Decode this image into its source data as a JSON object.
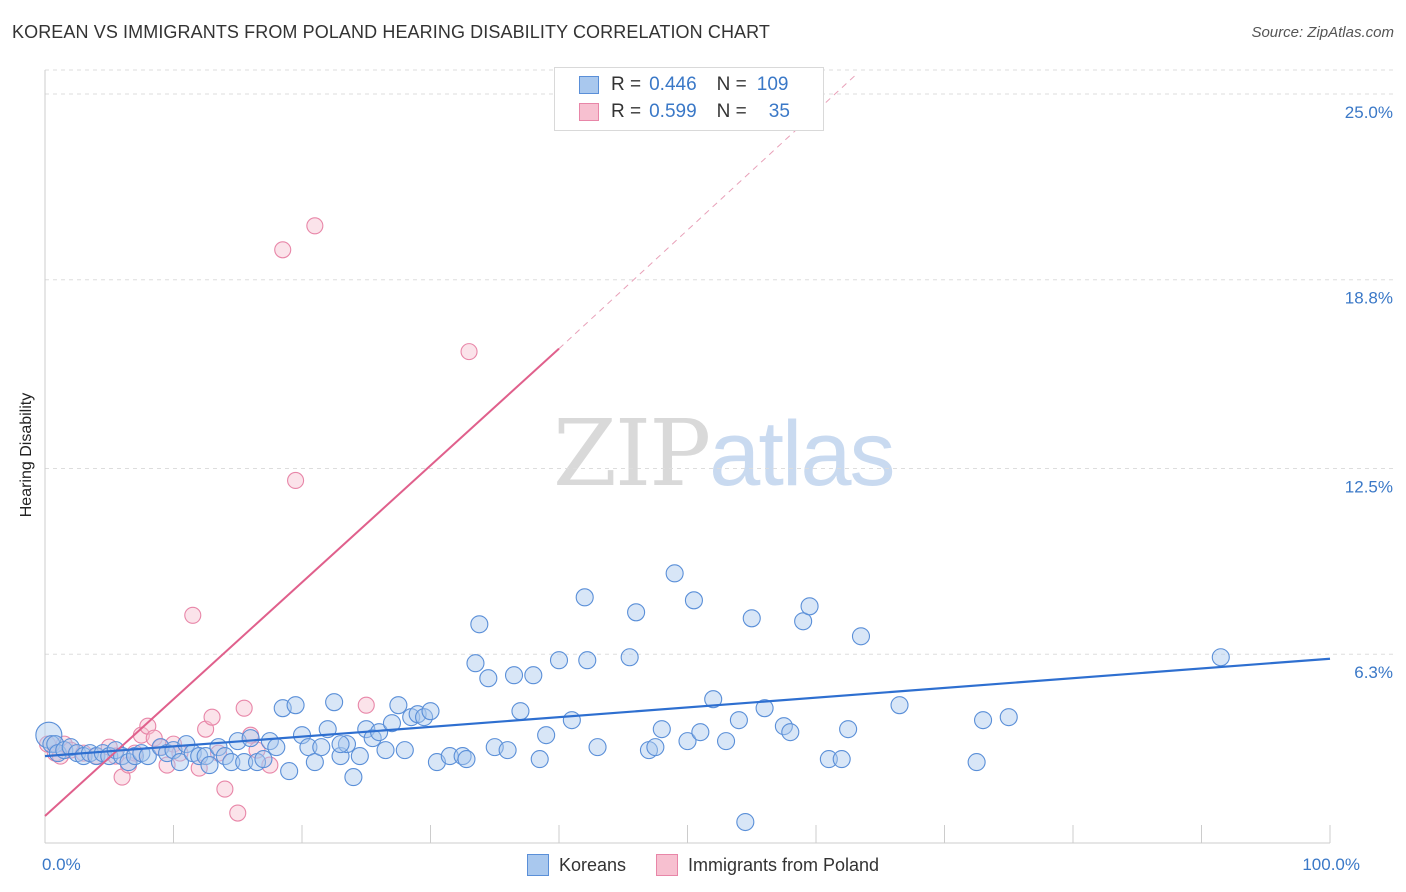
{
  "header": {
    "title": "KOREAN VS IMMIGRANTS FROM POLAND HEARING DISABILITY CORRELATION CHART",
    "source": "Source: ZipAtlas.com"
  },
  "watermark": {
    "part1": "ZIP",
    "part2": "atlas"
  },
  "legend_top": {
    "rows": [
      {
        "r_label": "R =",
        "r_value": "0.446",
        "n_label": "N =",
        "n_value": "109"
      },
      {
        "r_label": "R =",
        "r_value": "0.599",
        "n_label": "N =",
        "n_value": "35"
      }
    ]
  },
  "colors": {
    "korean_fill": "#a9c8ee",
    "korean_stroke": "#5a8fd8",
    "korean_line": "#2e6fd0",
    "poland_fill": "#f7c0d0",
    "poland_stroke": "#e886a8",
    "poland_line": "#e0608c",
    "tick_label": "#3a78c7",
    "grid": "#dddddd"
  },
  "chart_data": {
    "type": "scatter",
    "title": "KOREAN VS IMMIGRANTS FROM POLAND HEARING DISABILITY CORRELATION CHART",
    "xlabel": "",
    "ylabel": "Hearing Disability",
    "xlim": [
      0,
      100
    ],
    "ylim": [
      0,
      25.8
    ],
    "x_tick_labels": [
      {
        "x": 0,
        "label": "0.0%"
      },
      {
        "x": 100,
        "label": "100.0%"
      }
    ],
    "y_ticks": [
      {
        "y": 6.3,
        "label": "6.3%"
      },
      {
        "y": 12.5,
        "label": "12.5%"
      },
      {
        "y": 18.8,
        "label": "18.8%"
      },
      {
        "y": 25.0,
        "label": "25.0%"
      }
    ],
    "grid": true,
    "legend_position": "bottom",
    "series": [
      {
        "name": "Koreans",
        "r": 0.446,
        "n": 109,
        "trend": [
          [
            0,
            2.9
          ],
          [
            100,
            6.15
          ]
        ],
        "points": [
          [
            0.3,
            3.6
          ],
          [
            0.5,
            3.3
          ],
          [
            0.8,
            3.3
          ],
          [
            1.0,
            3.0
          ],
          [
            1.5,
            3.1
          ],
          [
            2.0,
            3.2
          ],
          [
            2.5,
            3.0
          ],
          [
            3.0,
            2.9
          ],
          [
            3.5,
            3.0
          ],
          [
            4.0,
            2.9
          ],
          [
            4.5,
            3.0
          ],
          [
            5.0,
            2.9
          ],
          [
            5.5,
            3.1
          ],
          [
            6.0,
            2.9
          ],
          [
            6.5,
            2.7
          ],
          [
            7.0,
            2.9
          ],
          [
            7.5,
            3.0
          ],
          [
            8.0,
            2.9
          ],
          [
            9.0,
            3.2
          ],
          [
            9.5,
            3.0
          ],
          [
            10.0,
            3.1
          ],
          [
            10.5,
            2.7
          ],
          [
            11.0,
            3.3
          ],
          [
            11.5,
            3.0
          ],
          [
            12.0,
            2.9
          ],
          [
            12.5,
            2.9
          ],
          [
            12.8,
            2.6
          ],
          [
            13.5,
            3.2
          ],
          [
            14.0,
            2.9
          ],
          [
            14.5,
            2.7
          ],
          [
            15.0,
            3.4
          ],
          [
            15.5,
            2.7
          ],
          [
            16.0,
            3.5
          ],
          [
            16.5,
            2.7
          ],
          [
            17.0,
            2.8
          ],
          [
            17.5,
            3.4
          ],
          [
            18.0,
            3.2
          ],
          [
            18.5,
            4.5
          ],
          [
            19.0,
            2.4
          ],
          [
            19.5,
            4.6
          ],
          [
            20.0,
            3.6
          ],
          [
            20.5,
            3.2
          ],
          [
            21.0,
            2.7
          ],
          [
            21.5,
            3.2
          ],
          [
            22.0,
            3.8
          ],
          [
            22.5,
            4.7
          ],
          [
            23.0,
            2.9
          ],
          [
            23.5,
            3.3
          ],
          [
            24.0,
            2.2
          ],
          [
            24.5,
            2.9
          ],
          [
            25.0,
            3.8
          ],
          [
            25.5,
            3.5
          ],
          [
            26.0,
            3.7
          ],
          [
            26.5,
            3.1
          ],
          [
            27.0,
            4.0
          ],
          [
            27.5,
            4.6
          ],
          [
            28.0,
            3.1
          ],
          [
            28.5,
            4.2
          ],
          [
            29.0,
            4.3
          ],
          [
            29.5,
            4.2
          ],
          [
            30.0,
            4.4
          ],
          [
            30.5,
            2.7
          ],
          [
            31.5,
            2.9
          ],
          [
            32.5,
            2.9
          ],
          [
            32.8,
            2.8
          ],
          [
            33.5,
            6.0
          ],
          [
            33.8,
            7.3
          ],
          [
            34.5,
            5.5
          ],
          [
            35.0,
            3.2
          ],
          [
            36.0,
            3.1
          ],
          [
            36.5,
            5.6
          ],
          [
            37.0,
            4.4
          ],
          [
            38.0,
            5.6
          ],
          [
            38.5,
            2.8
          ],
          [
            39.0,
            3.6
          ],
          [
            40.0,
            6.1
          ],
          [
            41.0,
            4.1
          ],
          [
            42.0,
            8.2
          ],
          [
            42.2,
            6.1
          ],
          [
            43.0,
            3.2
          ],
          [
            45.5,
            6.2
          ],
          [
            46.0,
            7.7
          ],
          [
            47.0,
            3.1
          ],
          [
            47.5,
            3.2
          ],
          [
            48.0,
            3.8
          ],
          [
            49.0,
            9.0
          ],
          [
            50.0,
            3.4
          ],
          [
            50.5,
            8.1
          ],
          [
            51.0,
            3.7
          ],
          [
            52.0,
            4.8
          ],
          [
            53.0,
            3.4
          ],
          [
            54.0,
            4.1
          ],
          [
            54.5,
            0.7
          ],
          [
            55.0,
            7.5
          ],
          [
            56.0,
            4.5
          ],
          [
            57.5,
            3.9
          ],
          [
            58.0,
            3.7
          ],
          [
            59.0,
            7.4
          ],
          [
            59.5,
            7.9
          ],
          [
            61.0,
            2.8
          ],
          [
            62.0,
            2.8
          ],
          [
            62.5,
            3.8
          ],
          [
            63.5,
            6.9
          ],
          [
            66.5,
            4.6
          ],
          [
            72.5,
            2.7
          ],
          [
            73.0,
            4.1
          ],
          [
            75.0,
            4.2
          ],
          [
            91.5,
            6.2
          ],
          [
            23.0,
            3.3
          ]
        ]
      },
      {
        "name": "Immigrants from Poland",
        "r": 0.599,
        "n": 35,
        "trend": [
          [
            0,
            0.9
          ],
          [
            40,
            16.5
          ]
        ],
        "trend_dash": [
          [
            40,
            16.5
          ],
          [
            63,
            25.6
          ]
        ],
        "points": [
          [
            0.2,
            3.3
          ],
          [
            0.8,
            3.0
          ],
          [
            1.2,
            2.9
          ],
          [
            1.5,
            3.3
          ],
          [
            2.0,
            3.1
          ],
          [
            3.0,
            3.0
          ],
          [
            4.0,
            2.9
          ],
          [
            5.0,
            3.2
          ],
          [
            5.5,
            2.9
          ],
          [
            6.0,
            2.2
          ],
          [
            6.5,
            2.6
          ],
          [
            7.0,
            3.0
          ],
          [
            7.5,
            3.6
          ],
          [
            8.0,
            3.9
          ],
          [
            8.5,
            3.5
          ],
          [
            9.0,
            3.2
          ],
          [
            9.5,
            2.6
          ],
          [
            10.0,
            3.3
          ],
          [
            10.5,
            3.0
          ],
          [
            11.5,
            7.6
          ],
          [
            12.0,
            2.5
          ],
          [
            12.5,
            3.8
          ],
          [
            13.0,
            4.2
          ],
          [
            13.5,
            3.0
          ],
          [
            14.0,
            1.8
          ],
          [
            15.0,
            1.0
          ],
          [
            15.5,
            4.5
          ],
          [
            16.0,
            3.6
          ],
          [
            16.5,
            3.1
          ],
          [
            17.5,
            2.6
          ],
          [
            18.5,
            19.8
          ],
          [
            19.5,
            12.1
          ],
          [
            21.0,
            20.6
          ],
          [
            25.0,
            4.6
          ],
          [
            33.0,
            16.4
          ]
        ]
      }
    ]
  },
  "bottom_legend": {
    "koreans": "Koreans",
    "poland": "Immigrants from Poland"
  }
}
